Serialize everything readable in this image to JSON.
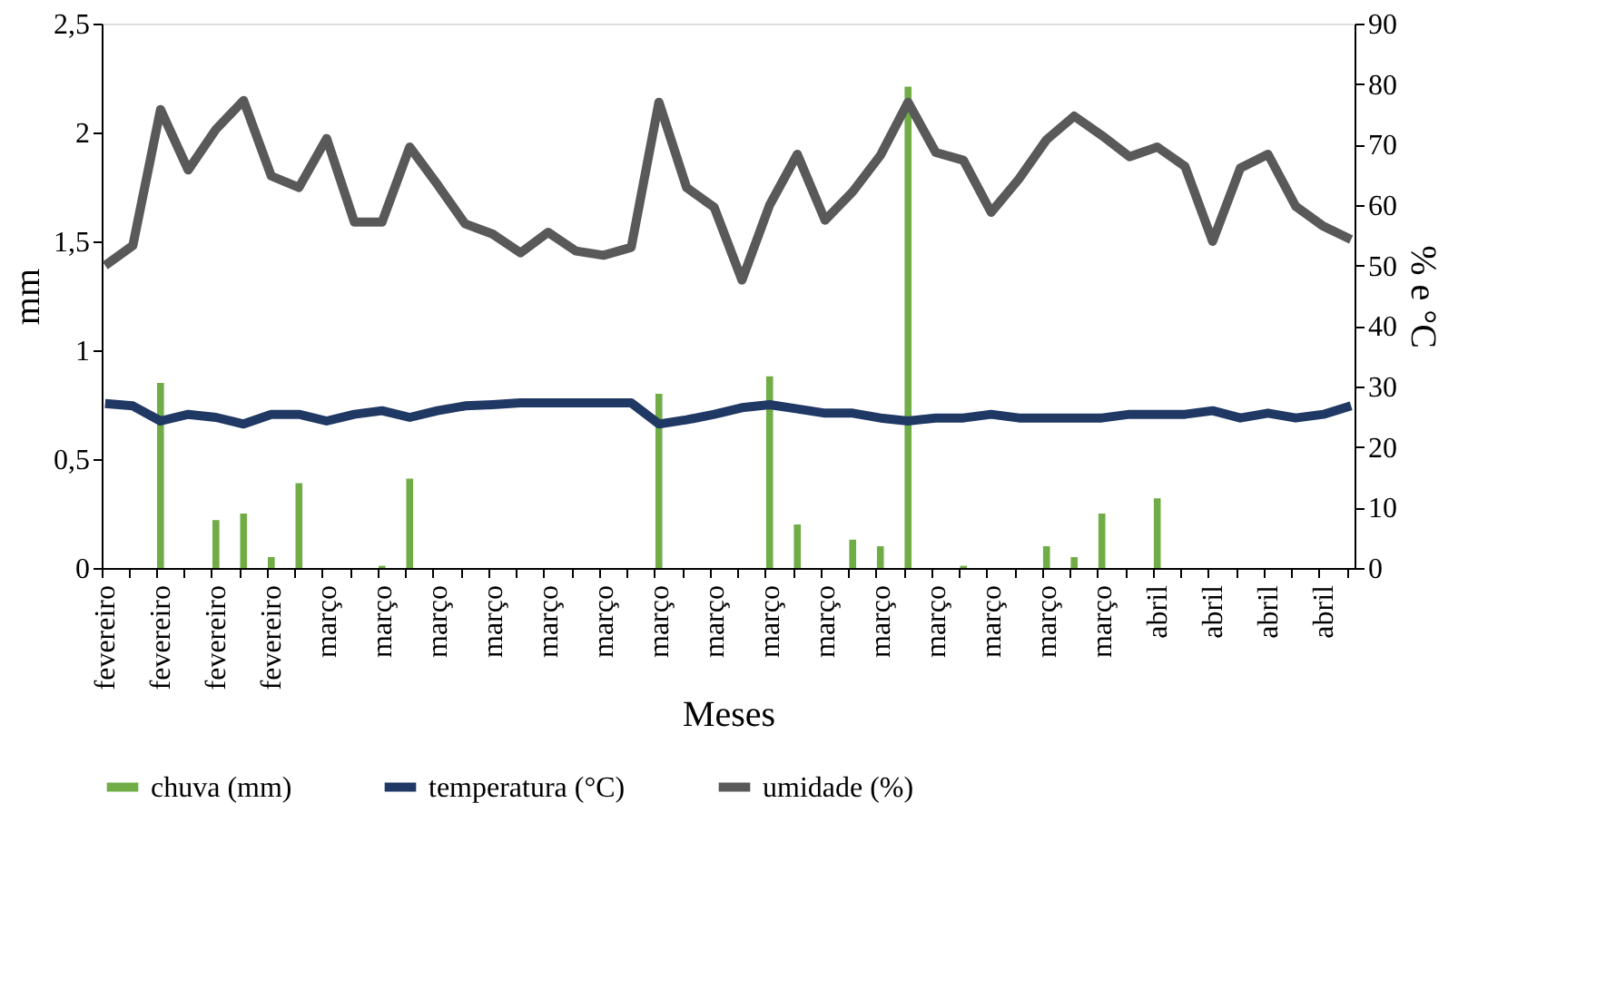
{
  "chart_data": {
    "type": "bar",
    "xlabel": "Meses",
    "ylabel": "mm",
    "y2label": "% e °C",
    "categories": [
      "fevereiro",
      null,
      "fevereiro",
      null,
      "fevereiro",
      null,
      "fevereiro",
      null,
      "março",
      null,
      "março",
      null,
      "março",
      null,
      "março",
      null,
      "março",
      null,
      "março",
      null,
      "março",
      null,
      "março",
      null,
      "março",
      null,
      "março",
      null,
      "março",
      null,
      "março",
      null,
      "março",
      null,
      "março",
      null,
      "março",
      null,
      "abril",
      null,
      "abril",
      null,
      "abril",
      null,
      "abril",
      null
    ],
    "ylim": [
      0,
      2.5
    ],
    "yticks": [
      0,
      {
        "value": 0.5,
        "label": "0,5"
      },
      1,
      {
        "value": 1.5,
        "label": "1,5"
      },
      2,
      {
        "value": 2.5,
        "label": "2,5"
      }
    ],
    "y2lim": [
      0,
      90
    ],
    "y2ticks": [
      0,
      10,
      20,
      30,
      40,
      50,
      60,
      70,
      80,
      90
    ],
    "legend": "bottom",
    "grid": false,
    "series": [
      {
        "name": "chuva (mm)",
        "color": "#70ad47",
        "values": [
          0,
          0,
          0.85,
          0,
          0.22,
          0.25,
          0.05,
          0.39,
          0,
          0,
          0.01,
          0.41,
          0,
          0,
          0,
          0,
          0,
          0,
          0,
          0,
          0.8,
          0,
          0,
          0,
          0.88,
          0.2,
          0,
          0.13,
          0.1,
          2.21,
          0,
          0.01,
          0,
          0,
          0.1,
          0.05,
          0.25,
          0,
          0.32,
          0,
          0,
          0,
          0,
          0,
          0,
          0
        ]
      },
      {
        "name": "temperatura (°C)",
        "type": "line",
        "axis": "y2",
        "color": "#1f3864",
        "values": [
          27.2,
          26.8,
          24.3,
          25.4,
          24.9,
          23.8,
          25.4,
          25.4,
          24.3,
          25.4,
          26.0,
          24.9,
          26.0,
          26.8,
          27.0,
          27.3,
          27.3,
          27.3,
          27.3,
          27.3,
          23.8,
          24.5,
          25.4,
          26.5,
          27.0,
          26.3,
          25.6,
          25.6,
          24.8,
          24.3,
          24.8,
          24.8,
          25.4,
          24.8,
          24.8,
          24.8,
          24.8,
          25.4,
          25.4,
          25.4,
          26.0,
          24.8,
          25.6,
          24.8,
          25.4,
          26.8
        ]
      },
      {
        "name": "umidade (%)",
        "type": "line",
        "axis": "y2",
        "color": "#595959",
        "values": [
          50.0,
          53.3,
          75.8,
          65.8,
          72.5,
          77.3,
          64.8,
          62.9,
          71.0,
          57.2,
          57.2,
          69.6,
          63.4,
          56.9,
          55.2,
          52.1,
          55.5,
          52.4,
          51.7,
          53.0,
          77.0,
          62.9,
          59.6,
          47.6,
          60.0,
          68.4,
          57.5,
          62.2,
          68.2,
          77.0,
          68.7,
          67.4,
          58.8,
          64.3,
          70.8,
          74.7,
          71.5,
          68.0,
          69.6,
          66.4,
          54.0,
          66.1,
          68.4,
          59.8,
          56.5,
          54.3
        ]
      }
    ]
  }
}
